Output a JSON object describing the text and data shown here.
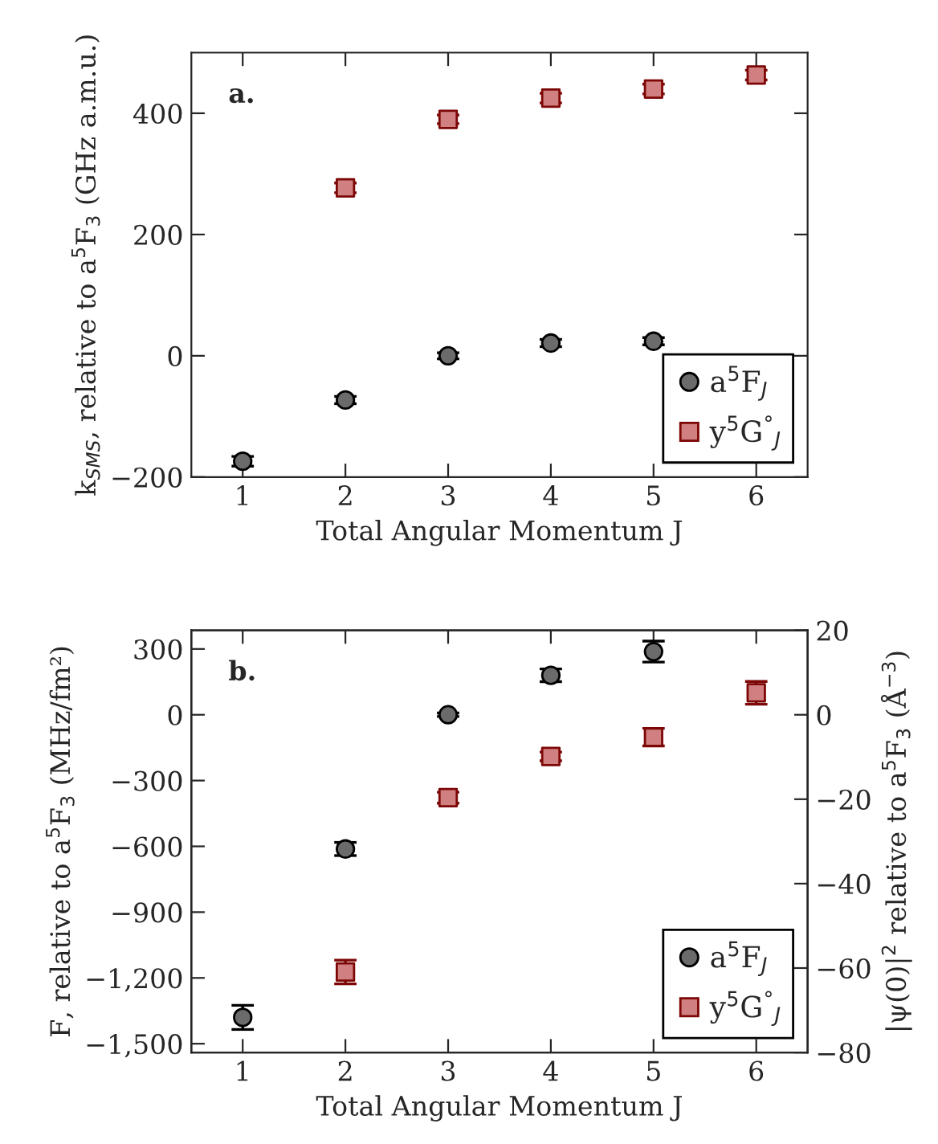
{
  "chart_data": [
    {
      "type": "scatter",
      "xlabel": "Total Angular Momentum J",
      "ylabel": "k$_{SMS}$, relative to a$^{5}$F$_{3}$ (GHz a.m.u.)",
      "annotations": [
        "a."
      ],
      "xlim": [
        0.5,
        6.5
      ],
      "xticks": [
        1,
        2,
        3,
        4,
        5,
        6
      ],
      "ylim": [
        -200,
        500
      ],
      "yticks": [
        {
          "value": -200,
          "label": "−200"
        },
        0,
        200,
        400
      ],
      "legend": "bottom right",
      "grid": false,
      "series": [
        {
          "name": "a$^{5}$F$_{J}$",
          "color": "#6b6b6b",
          "marker": "circle",
          "x": [
            1,
            2,
            3,
            4,
            5
          ],
          "values": [
            -174,
            -73,
            0,
            21,
            24
          ],
          "errors": [
            8,
            6,
            5,
            6,
            6
          ]
        },
        {
          "name": "y$^{5}$G$^{°}$$_{J}$",
          "color": "#d08080",
          "marker": "square",
          "x": [
            2,
            3,
            4,
            5,
            6
          ],
          "values": [
            277,
            390,
            425,
            440,
            463
          ],
          "errors": [
            8,
            7,
            8,
            8,
            8
          ]
        }
      ]
    },
    {
      "type": "scatter",
      "xlabel": "Total Angular Momentum J",
      "ylabel": "F, relative to a$^{5}$F$_{3}$ (MHz/fm²)",
      "y2label": "|ψ(0)|$^{2}$ relative to a$^{5}$F$_{3}$ (Å$^{−3}$)",
      "annotations": [
        "b."
      ],
      "xlim": [
        0.5,
        6.5
      ],
      "xticks": [
        1,
        2,
        3,
        4,
        5,
        6
      ],
      "ylim": [
        -1540,
        385
      ],
      "yticks": [
        {
          "value": -1500,
          "label": "−1,500"
        },
        {
          "value": -1200,
          "label": "−1,200"
        },
        {
          "value": -900,
          "label": "−900"
        },
        {
          "value": -600,
          "label": "−600"
        },
        {
          "value": -300,
          "label": "−300"
        },
        0,
        300
      ],
      "y2lim": [
        -80,
        20
      ],
      "y2ticks": [
        {
          "value": -80,
          "label": "−80"
        },
        {
          "value": -60,
          "label": "−60"
        },
        {
          "value": -40,
          "label": "−40"
        },
        {
          "value": -20,
          "label": "−20"
        },
        0,
        20
      ],
      "legend": "bottom right",
      "grid": false,
      "series": [
        {
          "name": "a$^{5}$F$_{J}$",
          "color": "#6b6b6b",
          "marker": "circle",
          "x": [
            1,
            2,
            3,
            4,
            5
          ],
          "values": [
            -1380,
            -612,
            0,
            180,
            288
          ],
          "errors": [
            55,
            30,
            8,
            29,
            48
          ]
        },
        {
          "name": "y$^{5}$G$^{°}$$_{J}$",
          "color": "#d08080",
          "marker": "square",
          "x": [
            2,
            3,
            4,
            5,
            6
          ],
          "values": [
            -1173,
            -378,
            -190,
            -102,
            100
          ],
          "errors": [
            54,
            25,
            20,
            40,
            52
          ]
        }
      ]
    }
  ]
}
